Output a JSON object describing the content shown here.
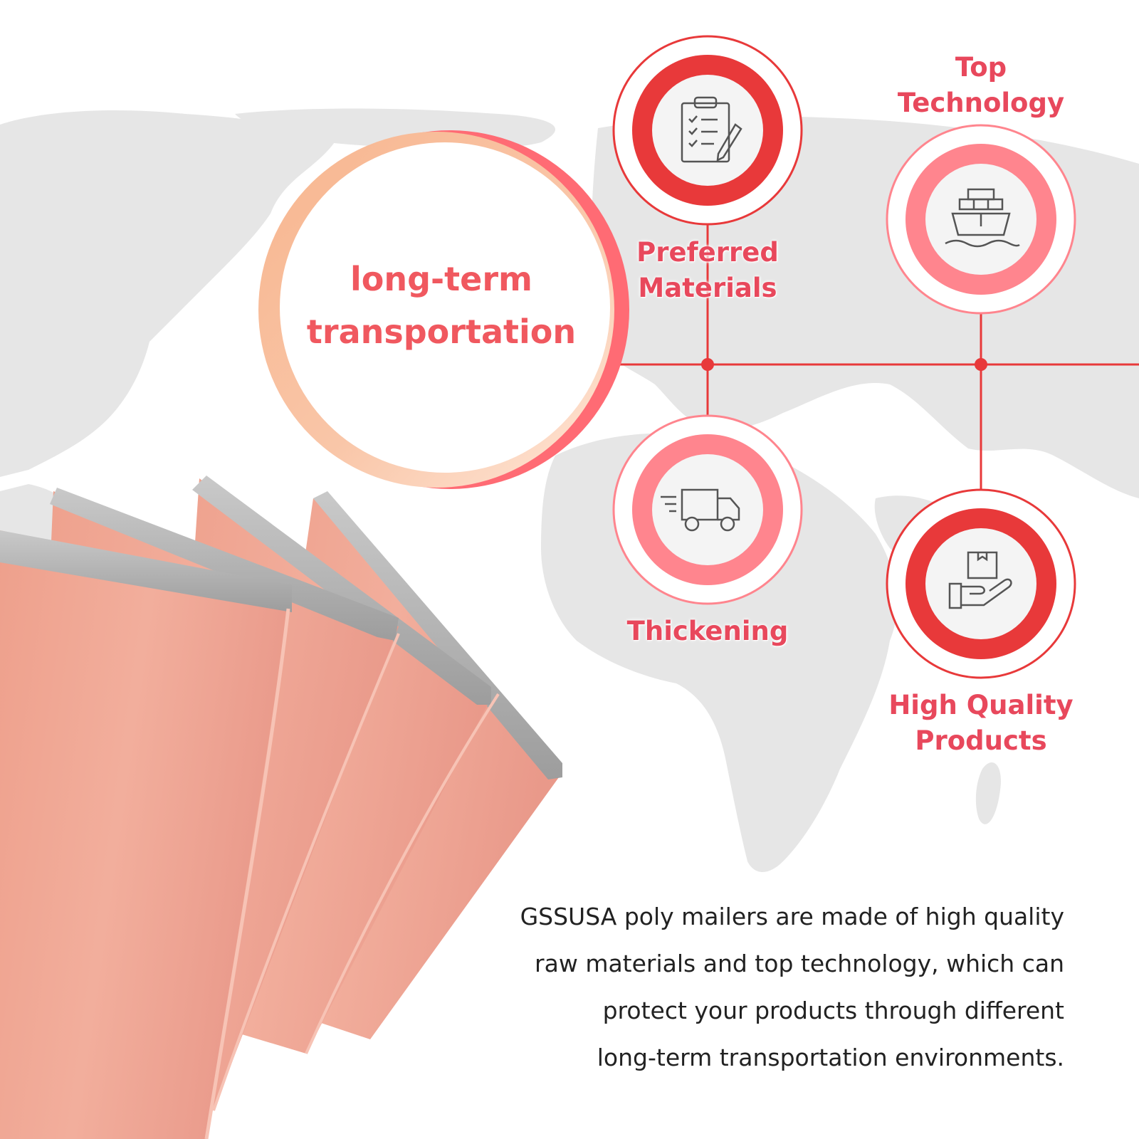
{
  "main_circle": {
    "line1": "long-term",
    "line2": "transportation"
  },
  "features": [
    {
      "line1": "Preferred",
      "line2": "Materials",
      "icon": "clipboard-checklist-icon"
    },
    {
      "line1": "Top",
      "line2": "Technology",
      "icon": "cargo-ship-icon"
    },
    {
      "line1": "Thickening",
      "line2": "",
      "icon": "delivery-truck-icon"
    },
    {
      "line1": "High Quality",
      "line2": "Products",
      "icon": "hand-holding-box-icon"
    }
  ],
  "description": {
    "line1": "GSSUSA poly mailers are made of high quality",
    "line2": "raw materials and top technology, which can",
    "line3": "protect your products through different",
    "line4": "long-term transportation environments."
  },
  "colors": {
    "accent_red": "#e8393a",
    "accent_pink": "#ff858e",
    "label_text": "#e8485c",
    "mailer_peach": "#efa693",
    "map_gray": "#e6e6e6"
  }
}
